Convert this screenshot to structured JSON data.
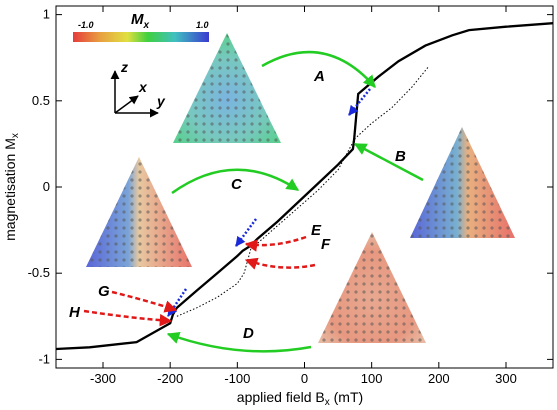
{
  "chart_data": {
    "type": "line",
    "xlabel": "applied field B",
    "xlabel_sub": "x",
    "xlabel_unit": "(mT)",
    "ylabel": "magnetisation M",
    "ylabel_sub": "x",
    "xlim": [
      -370,
      370
    ],
    "ylim": [
      -1.05,
      1.05
    ],
    "xticks": [
      -300,
      -200,
      -100,
      0,
      100,
      200,
      300
    ],
    "yticks": [
      -1,
      -0.5,
      0,
      0.5,
      1
    ],
    "ytick_labels": [
      "-1",
      "-0.5",
      "0",
      "0.5",
      "1"
    ],
    "grid": false,
    "series": [
      {
        "style": "solid",
        "x": [
          -370,
          -320,
          -250,
          -200,
          -196,
          -190,
          -160,
          -130,
          -100,
          -92,
          -80,
          -70,
          -40,
          -10,
          20,
          50,
          72,
          74,
          80,
          110,
          140,
          180,
          220,
          245,
          300,
          370
        ],
        "y": [
          -0.94,
          -0.93,
          -0.9,
          -0.79,
          -0.74,
          -0.7,
          -0.6,
          -0.5,
          -0.4,
          -0.37,
          -0.34,
          -0.3,
          -0.2,
          -0.09,
          0.02,
          0.13,
          0.22,
          0.28,
          0.54,
          0.64,
          0.73,
          0.82,
          0.88,
          0.91,
          0.93,
          0.95
        ]
      },
      {
        "style": "dotted",
        "x": [
          -190,
          -160,
          -130,
          -100,
          -90,
          -80,
          20,
          50,
          75,
          100,
          130,
          160,
          185
        ],
        "y": [
          -0.75,
          -0.7,
          -0.64,
          -0.56,
          -0.5,
          -0.36,
          -0.02,
          0.1,
          0.28,
          0.37,
          0.46,
          0.58,
          0.7
        ]
      }
    ],
    "annotations": [
      "A",
      "B",
      "C",
      "D",
      "E",
      "F",
      "G",
      "H"
    ],
    "colorbar": {
      "title": "M",
      "title_sub": "x",
      "min_label": "-1.0",
      "max_label": "1.0",
      "colors": [
        "#e63c3c",
        "#e8a040",
        "#e0e040",
        "#40d040",
        "#40c0c0",
        "#3a3ad0"
      ]
    },
    "axes_indicator": {
      "z": "z",
      "x": "x",
      "y": "y"
    }
  }
}
